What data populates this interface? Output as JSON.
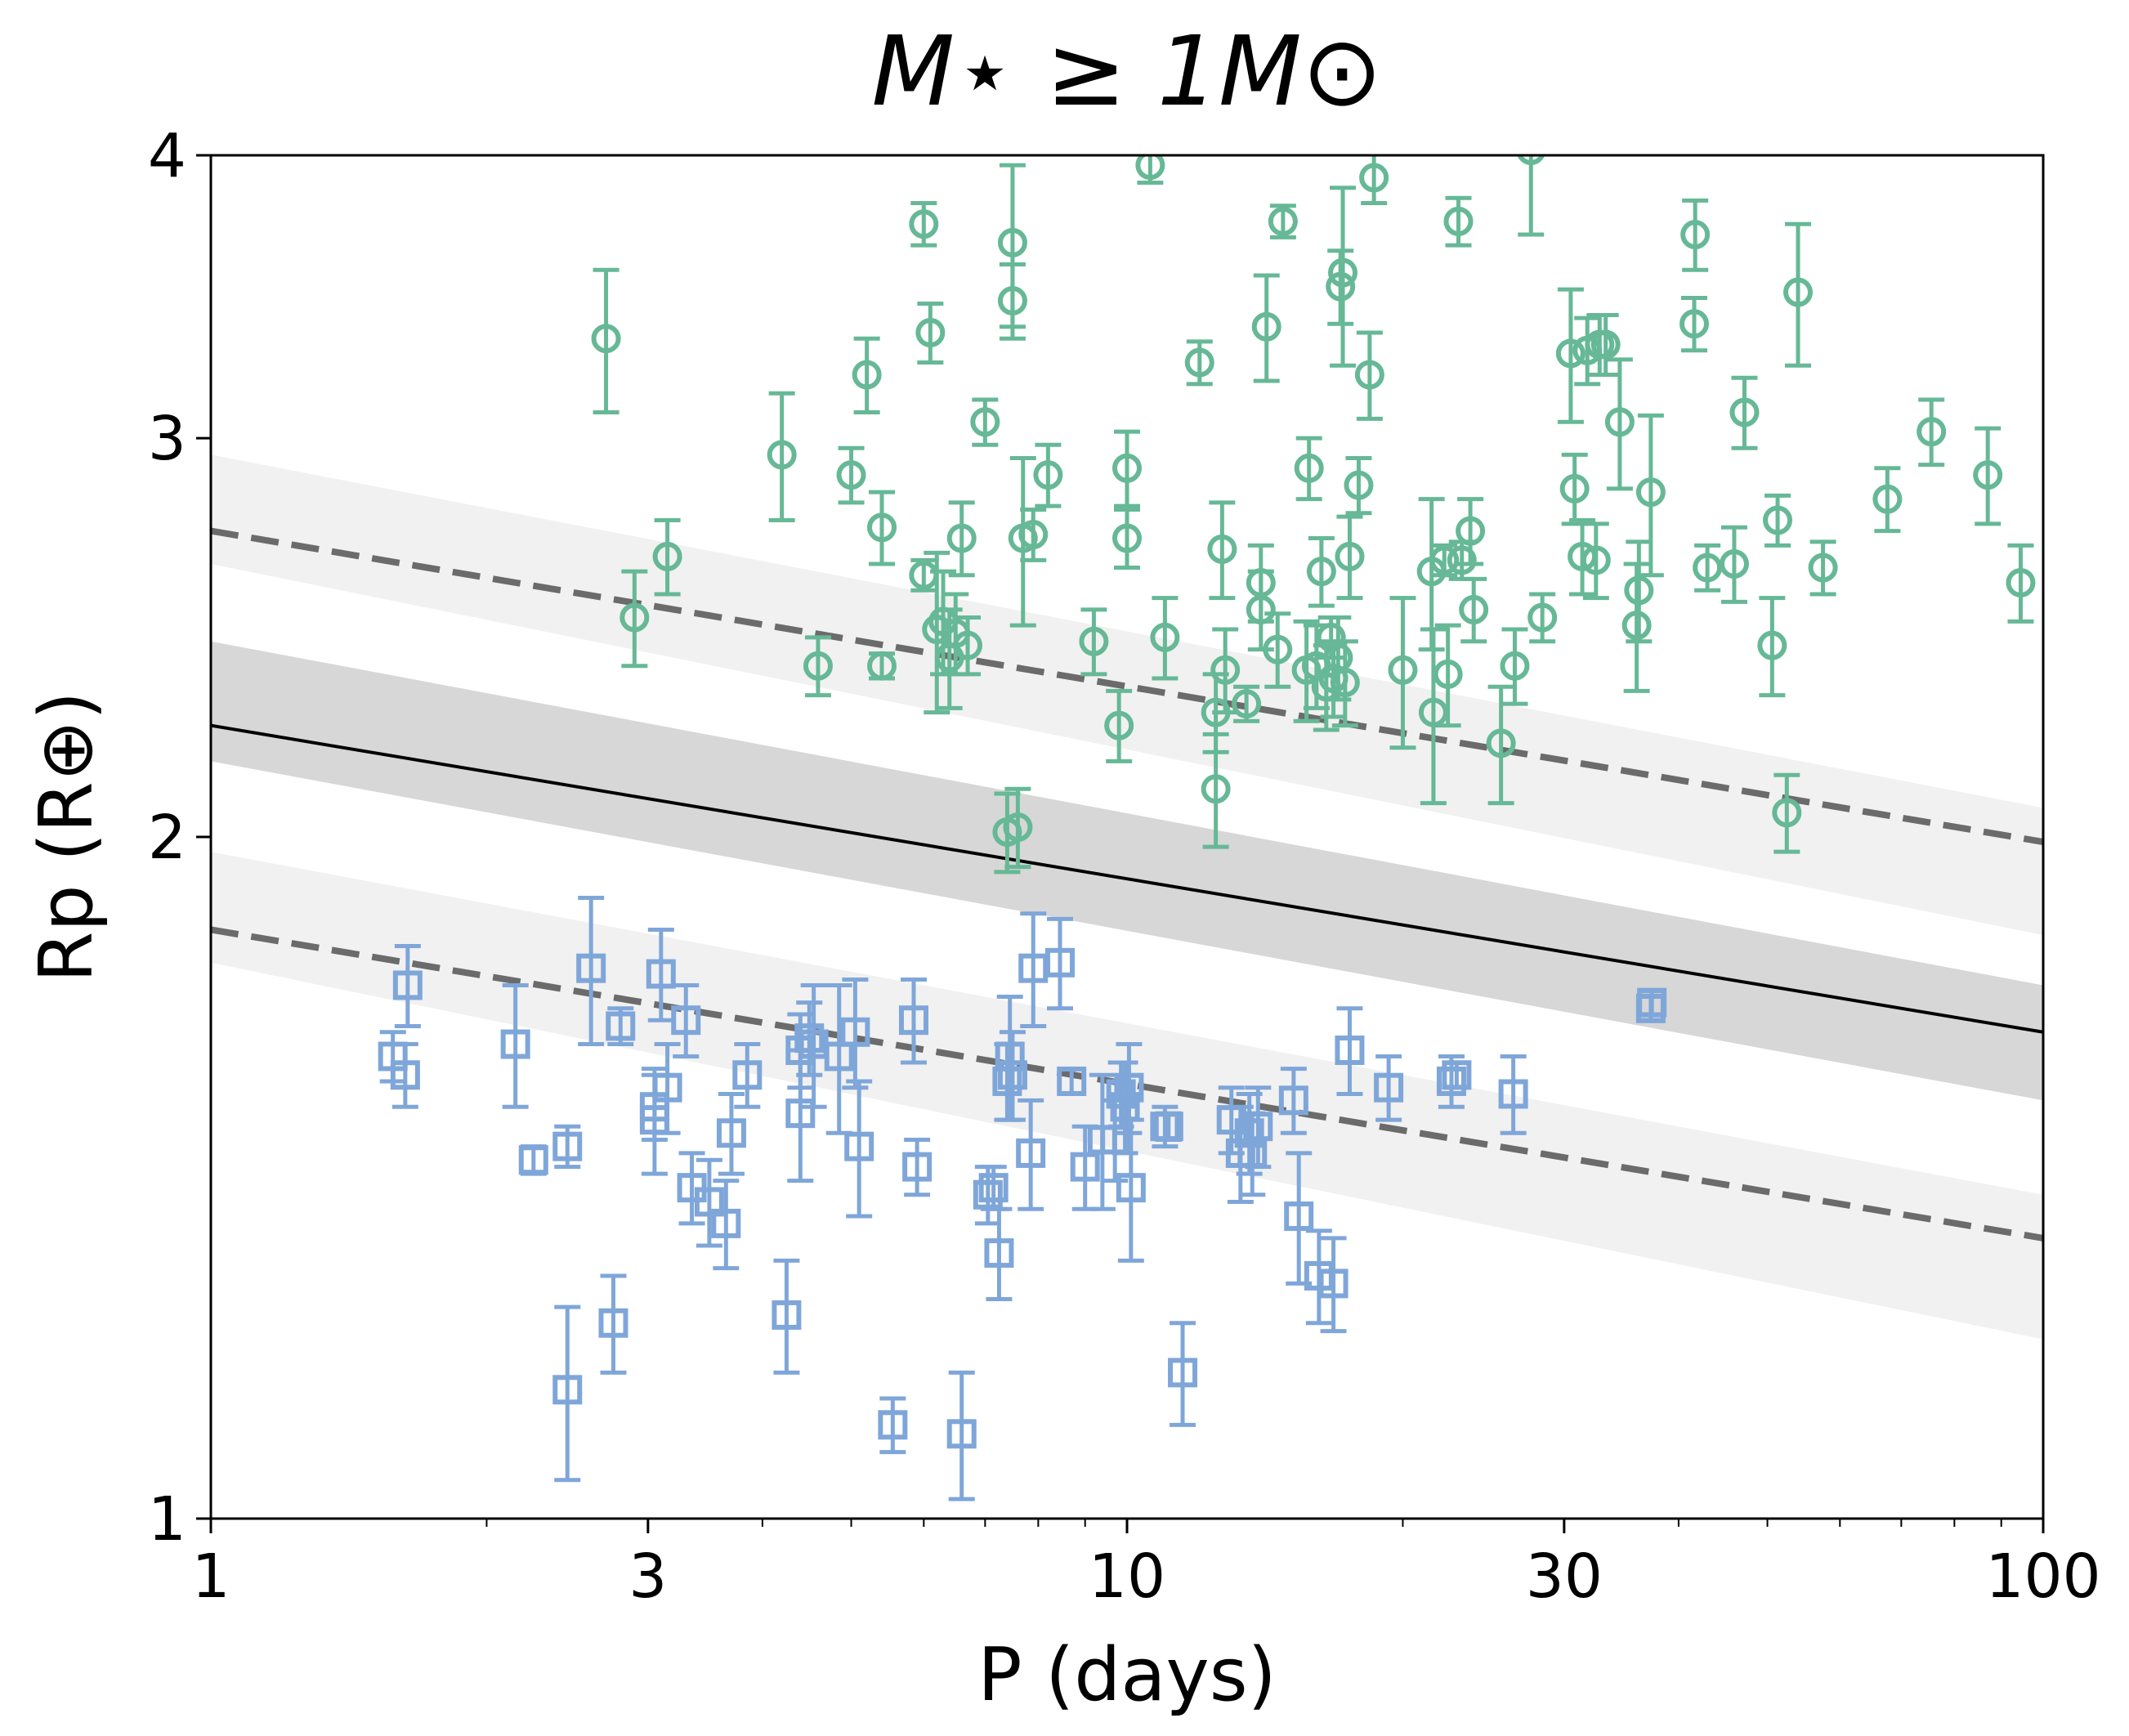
{
  "chart_data": {
    "type": "scatter",
    "title": "M⋆ ≥ 1M⊙",
    "xlabel": "P (days)",
    "ylabel": "Rp (R⊕)",
    "xscale": "log",
    "yscale": "log",
    "xlim": [
      1,
      100
    ],
    "ylim": [
      1,
      4
    ],
    "x_major_ticks": [
      1,
      3,
      10,
      30,
      100
    ],
    "x_tick_labels": [
      "1",
      "3",
      "10",
      "30",
      "100"
    ],
    "y_major_ticks": [
      1,
      2,
      3,
      4
    ],
    "y_tick_labels": [
      "1",
      "2",
      "3",
      "4"
    ],
    "grid": false,
    "colors": {
      "upper": "#66b896",
      "lower": "#7fa6d9",
      "fit": "#000000",
      "boundary": "#6b6b6b",
      "band_dark": "#d7d7d7",
      "band_light": "#f1f1f1"
    },
    "lines": [
      {
        "style": "solid",
        "x": [
          1,
          100
        ],
        "y": [
          2.24,
          1.64
        ],
        "band": {
          "upper": [
            2.44,
            1.72
          ],
          "lower": [
            2.16,
            1.53
          ]
        }
      },
      {
        "style": "dashed",
        "x": [
          1,
          100
        ],
        "y": [
          2.73,
          1.99
        ],
        "band": {
          "upper": [
            2.95,
            2.06
          ],
          "lower": [
            2.64,
            1.81
          ]
        }
      },
      {
        "style": "dashed",
        "x": [
          1,
          100
        ],
        "y": [
          1.82,
          1.33
        ],
        "band": {
          "upper": [
            1.97,
            1.39
          ],
          "lower": [
            1.76,
            1.2
          ]
        }
      }
    ],
    "series": [
      {
        "marker": "circle",
        "points": [
          [
            2.7,
            3.32,
            0.24
          ],
          [
            2.9,
            2.5,
            0.12
          ],
          [
            3.15,
            2.66,
            0.1
          ],
          [
            4.2,
            2.95,
            0.19
          ],
          [
            4.6,
            2.38,
            0.07
          ],
          [
            5.0,
            2.89,
            0.08
          ],
          [
            5.2,
            3.2,
            0.12
          ],
          [
            5.4,
            2.74,
            0.1
          ],
          [
            5.4,
            2.38,
            0.03
          ],
          [
            6.0,
            2.61,
            0.04
          ],
          [
            6.0,
            3.73,
            0.08
          ],
          [
            6.1,
            3.34,
            0.1
          ],
          [
            6.2,
            2.47,
            0.2
          ],
          [
            6.3,
            2.49,
            0.13
          ],
          [
            6.4,
            2.4,
            0.12
          ],
          [
            6.5,
            2.46,
            0.1
          ],
          [
            6.6,
            2.71,
            0.1
          ],
          [
            6.7,
            2.43,
            0.07
          ],
          [
            7.0,
            3.05,
            0.07
          ],
          [
            7.4,
            2.01,
            0.08
          ],
          [
            7.5,
            3.66,
            0.3
          ],
          [
            7.5,
            3.45,
            0.13
          ],
          [
            7.6,
            2.02,
            0.08
          ],
          [
            7.7,
            2.71,
            0.23
          ],
          [
            7.9,
            2.72,
            0.07
          ],
          [
            8.2,
            2.89,
            0.09
          ],
          [
            9.2,
            2.44,
            0.08
          ],
          [
            9.8,
            2.24,
            0.08
          ],
          [
            10.0,
            2.91,
            0.11
          ],
          [
            10.0,
            2.71,
            0.08
          ],
          [
            10.6,
            3.96,
            0.07
          ],
          [
            11.0,
            2.45,
            0.1
          ],
          [
            12.0,
            3.24,
            0.07
          ],
          [
            12.5,
            2.1,
            0.12
          ],
          [
            12.5,
            2.27,
            0.09
          ],
          [
            12.7,
            2.68,
            0.13
          ],
          [
            12.8,
            2.37,
            0.1
          ],
          [
            13.5,
            2.29,
            0.04
          ],
          [
            14.0,
            2.59,
            0.1
          ],
          [
            14.0,
            2.52,
            0.1
          ],
          [
            14.2,
            3.36,
            0.18
          ],
          [
            14.6,
            2.42,
            0.09
          ],
          [
            14.8,
            3.74,
            0.06
          ],
          [
            15.7,
            2.37,
            0.12
          ],
          [
            15.8,
            2.91,
            0.09
          ],
          [
            16.1,
            2.38,
            0.1
          ],
          [
            16.3,
            2.62,
            0.09
          ],
          [
            16.5,
            2.33,
            0.1
          ],
          [
            16.7,
            2.45,
            0.05
          ],
          [
            16.8,
            2.35,
            0.09
          ],
          [
            17.0,
            2.4,
            0.1
          ],
          [
            17.1,
            3.5,
            0.13
          ],
          [
            17.2,
            3.55,
            0.32
          ],
          [
            17.3,
            2.34,
            0.1
          ],
          [
            17.5,
            2.66,
            0.11
          ],
          [
            17.9,
            2.86,
            0.08
          ],
          [
            18.4,
            3.2,
            0.14
          ],
          [
            18.6,
            3.91,
            0.1
          ],
          [
            20.0,
            2.37,
            0.18
          ],
          [
            21.5,
            2.62,
            0.2
          ],
          [
            21.6,
            2.27,
            0.2
          ],
          [
            22.2,
            2.65,
            0.04
          ],
          [
            22.4,
            2.36,
            0.12
          ],
          [
            23.0,
            3.74,
            0.09
          ],
          [
            23.2,
            2.65,
            0.05
          ],
          [
            23.7,
            2.73,
            0.09
          ],
          [
            23.9,
            2.52,
            0.08
          ],
          [
            25.6,
            2.2,
            0.13
          ],
          [
            26.5,
            2.38,
            0.09
          ],
          [
            27.6,
            4.02,
            0.33
          ],
          [
            28.4,
            2.5,
            0.06
          ],
          [
            30.5,
            3.27,
            0.22
          ],
          [
            30.8,
            2.85,
            0.1
          ],
          [
            31.4,
            2.66,
            0.1
          ],
          [
            31.8,
            3.28,
            0.11
          ],
          [
            32.5,
            2.65,
            0.1
          ],
          [
            32.8,
            3.3,
            0.1
          ],
          [
            33.3,
            3.3,
            0.1
          ],
          [
            34.5,
            3.05,
            0.2
          ],
          [
            36.0,
            2.48,
            0.16
          ],
          [
            36.2,
            2.57,
            0.13
          ],
          [
            37.3,
            2.84,
            0.23
          ],
          [
            41.6,
            3.37,
            0.09
          ],
          [
            41.7,
            3.69,
            0.13
          ],
          [
            43.0,
            2.63,
            0.06
          ],
          [
            46.0,
            2.64,
            0.1
          ],
          [
            47.2,
            3.08,
            0.11
          ],
          [
            50.6,
            2.43,
            0.12
          ],
          [
            51.3,
            2.76,
            0.07
          ],
          [
            52.5,
            2.05,
            0.08
          ],
          [
            54.0,
            3.48,
            0.25
          ],
          [
            57.5,
            2.63,
            0.07
          ],
          [
            67.6,
            2.82,
            0.09
          ],
          [
            75.5,
            3.02,
            0.1
          ],
          [
            87.0,
            2.89,
            0.14
          ],
          [
            94.5,
            2.59,
            0.1
          ]
        ]
      },
      {
        "marker": "square",
        "points": [
          [
            1.58,
            1.6,
            0.04
          ],
          [
            1.63,
            1.57,
            0.05
          ],
          [
            1.64,
            1.72,
            0.07
          ],
          [
            2.15,
            1.62,
            0.1
          ],
          [
            2.25,
            1.44,
            0.02
          ],
          [
            2.45,
            1.46,
            0.03
          ],
          [
            2.45,
            1.14,
            0.1
          ],
          [
            2.6,
            1.75,
            0.13
          ],
          [
            2.75,
            1.22,
            0.06
          ],
          [
            2.8,
            1.65,
            0.03
          ],
          [
            3.05,
            1.5,
            0.08
          ],
          [
            3.05,
            1.52,
            0.05
          ],
          [
            3.1,
            1.74,
            0.08
          ],
          [
            3.15,
            1.55,
            0.07
          ],
          [
            3.3,
            1.66,
            0.06
          ],
          [
            3.35,
            1.4,
            0.05
          ],
          [
            3.5,
            1.38,
            0.06
          ],
          [
            3.65,
            1.35,
            0.06
          ],
          [
            3.7,
            1.48,
            0.06
          ],
          [
            3.85,
            1.57,
            0.05
          ],
          [
            4.25,
            1.23,
            0.07
          ],
          [
            4.4,
            1.51,
            0.1
          ],
          [
            4.4,
            1.61,
            0.06
          ],
          [
            4.5,
            1.63,
            0.06
          ],
          [
            4.55,
            1.62,
            0.1
          ],
          [
            4.85,
            1.6,
            0.12
          ],
          [
            5.05,
            1.64,
            0.09
          ],
          [
            5.1,
            1.46,
            0.1
          ],
          [
            5.55,
            1.1,
            0.03
          ],
          [
            5.85,
            1.66,
            0.07
          ],
          [
            5.9,
            1.43,
            0.04
          ],
          [
            6.6,
            1.09,
            0.07
          ],
          [
            7.05,
            1.39,
            0.04
          ],
          [
            7.15,
            1.4,
            0.03
          ],
          [
            7.25,
            1.31,
            0.06
          ],
          [
            7.4,
            1.56,
            0.06
          ],
          [
            7.45,
            1.6,
            0.1
          ],
          [
            7.5,
            1.57,
            0.07
          ],
          [
            7.85,
            1.45,
            0.08
          ],
          [
            7.9,
            1.75,
            0.1
          ],
          [
            8.45,
            1.76,
            0.08
          ],
          [
            8.7,
            1.56,
            0.02
          ],
          [
            9.0,
            1.43,
            0.06
          ],
          [
            9.4,
            1.47,
            0.1
          ],
          [
            9.7,
            1.47,
            0.06
          ],
          [
            9.85,
            1.54,
            0.05
          ],
          [
            9.95,
            1.52,
            0.07
          ],
          [
            10.05,
            1.55,
            0.07
          ],
          [
            10.1,
            1.4,
            0.1
          ],
          [
            11.0,
            1.49,
            0.03
          ],
          [
            11.1,
            1.49,
            0.02
          ],
          [
            11.5,
            1.16,
            0.06
          ],
          [
            13.0,
            1.5,
            0.05
          ],
          [
            13.3,
            1.45,
            0.07
          ],
          [
            13.6,
            1.48,
            0.06
          ],
          [
            13.7,
            1.45,
            0.06
          ],
          [
            13.9,
            1.49,
            0.06
          ],
          [
            15.2,
            1.53,
            0.05
          ],
          [
            15.4,
            1.36,
            0.09
          ],
          [
            16.2,
            1.28,
            0.06
          ],
          [
            16.8,
            1.27,
            0.06
          ],
          [
            17.5,
            1.61,
            0.07
          ],
          [
            19.3,
            1.55,
            0.05
          ],
          [
            22.6,
            1.56,
            0.04
          ],
          [
            22.9,
            1.57,
            0.02
          ],
          [
            26.4,
            1.54,
            0.06
          ],
          [
            37.3,
            1.68,
            0.02
          ],
          [
            37.4,
            1.69,
            0.02
          ]
        ]
      }
    ]
  }
}
